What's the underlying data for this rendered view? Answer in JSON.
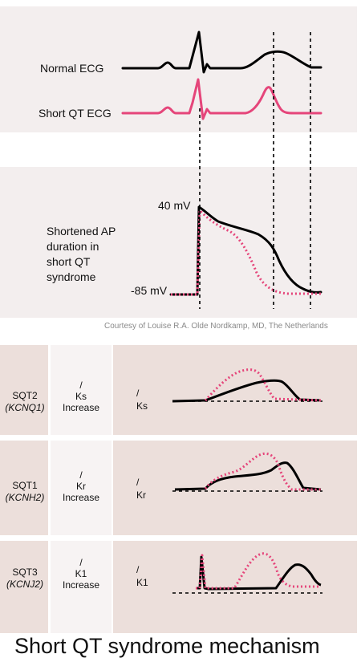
{
  "colors": {
    "panel_bg": "#f3eeee",
    "label_cell_bg": "#ecdfdb",
    "mid_cell_bg": "#f7f3f3",
    "normal_trace": "#000000",
    "short_qt_trace": "#e5457a"
  },
  "ecg_panel": {
    "normal_label": "Normal ECG",
    "short_label": "Short QT ECG"
  },
  "ap_panel": {
    "top_voltage": "40 mV",
    "bottom_voltage": "-85 mV",
    "description_lines": [
      "Shortened AP",
      "duration in",
      "short QT",
      "syndrome"
    ]
  },
  "credit": "Courtesy of Louise R.A. Olde Nordkamp, MD, The Netherlands",
  "rows": [
    {
      "type_name": "SQT2",
      "gene": "(KCNQ1)",
      "symbol": "/",
      "channel": "Ks",
      "effect": "Increase",
      "current_symbol": "/",
      "current": "Ks"
    },
    {
      "type_name": "SQT1",
      "gene": "(KCNH2)",
      "symbol": "/",
      "channel": "Kr",
      "effect": "Increase",
      "current_symbol": "/",
      "current": "Kr"
    },
    {
      "type_name": "SQT3",
      "gene": "(KCNJ2)",
      "symbol": "/",
      "channel": "K1",
      "effect": "Increase",
      "current_symbol": "/",
      "current": "K1"
    }
  ],
  "caption": "Short QT syndrome mechanism"
}
